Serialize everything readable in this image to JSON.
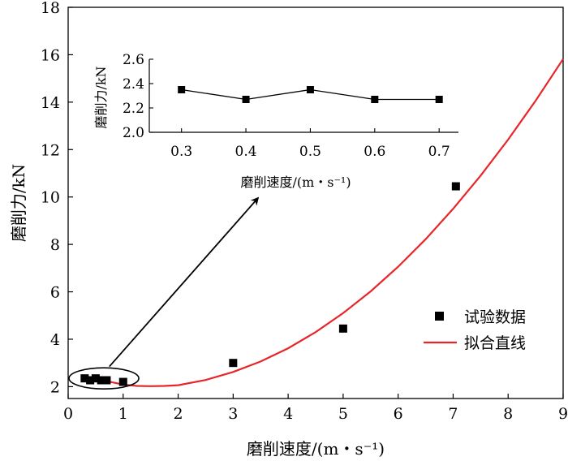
{
  "chart_data": [
    {
      "type": "scatter",
      "role": "main",
      "xlabel": "磨削速度/(m・s⁻¹)",
      "ylabel": "磨削力/kN",
      "xlim": [
        0,
        9
      ],
      "ylim": [
        1.5,
        18
      ],
      "xticks": [
        0,
        1,
        2,
        3,
        4,
        5,
        6,
        7,
        8,
        9
      ],
      "yticks": [
        2,
        4,
        6,
        8,
        10,
        12,
        14,
        16,
        18
      ],
      "grid": false,
      "legend_position": "bottom-right",
      "series": [
        {
          "name": "试验数据",
          "kind": "scatter",
          "marker": "square",
          "color": "#000000",
          "points": [
            {
              "x": 0.3,
              "y": 2.35
            },
            {
              "x": 0.4,
              "y": 2.27
            },
            {
              "x": 0.5,
              "y": 2.35
            },
            {
              "x": 0.6,
              "y": 2.27
            },
            {
              "x": 0.7,
              "y": 2.27
            },
            {
              "x": 1.0,
              "y": 2.2
            },
            {
              "x": 3.0,
              "y": 3.0
            },
            {
              "x": 5.0,
              "y": 4.45
            },
            {
              "x": 7.05,
              "y": 10.45
            }
          ]
        },
        {
          "name": "拟合直线",
          "kind": "line",
          "color": "#e8262a",
          "curve": {
            "x": [
              0.5,
              0.75,
              1.0,
              1.25,
              1.5,
              1.75,
              2.0,
              2.5,
              3.0,
              3.5,
              4.0,
              4.5,
              5.0,
              5.5,
              6.0,
              6.5,
              7.0,
              7.5,
              8.0,
              8.5,
              9.0
            ],
            "y": [
              2.4,
              2.21,
              2.09,
              2.03,
              2.02,
              2.03,
              2.06,
              2.28,
              2.62,
              3.06,
              3.62,
              4.3,
              5.1,
              6.02,
              7.06,
              8.22,
              9.5,
              10.9,
              12.42,
              14.06,
              15.82
            ]
          }
        }
      ],
      "annotations": {
        "ellipse_center": {
          "x": 0.65,
          "y": 2.35
        },
        "arrow_from": {
          "x": 0.75,
          "y": 2.85
        },
        "arrow_to": {
          "x": 3.45,
          "y": 9.95
        }
      }
    },
    {
      "type": "line",
      "role": "inset",
      "xlabel": "磨削速度/(m・s⁻¹)",
      "ylabel": "磨削力/kN",
      "xlim": [
        0.25,
        0.73
      ],
      "ylim": [
        2.0,
        2.6
      ],
      "xticks": [
        0.3,
        0.4,
        0.5,
        0.6,
        0.7
      ],
      "xtick_labels": [
        "0.3",
        "0.4",
        "0.5",
        "0.6",
        "0.7"
      ],
      "yticks": [
        2.0,
        2.2,
        2.4,
        2.6
      ],
      "ytick_labels": [
        "2.0",
        "2.2",
        "2.4",
        "2.6"
      ],
      "grid": false,
      "series": [
        {
          "marker": "square",
          "color": "#000000",
          "x": [
            0.3,
            0.4,
            0.5,
            0.6,
            0.7
          ],
          "y": [
            2.35,
            2.27,
            2.35,
            2.27,
            2.27
          ]
        }
      ]
    }
  ]
}
